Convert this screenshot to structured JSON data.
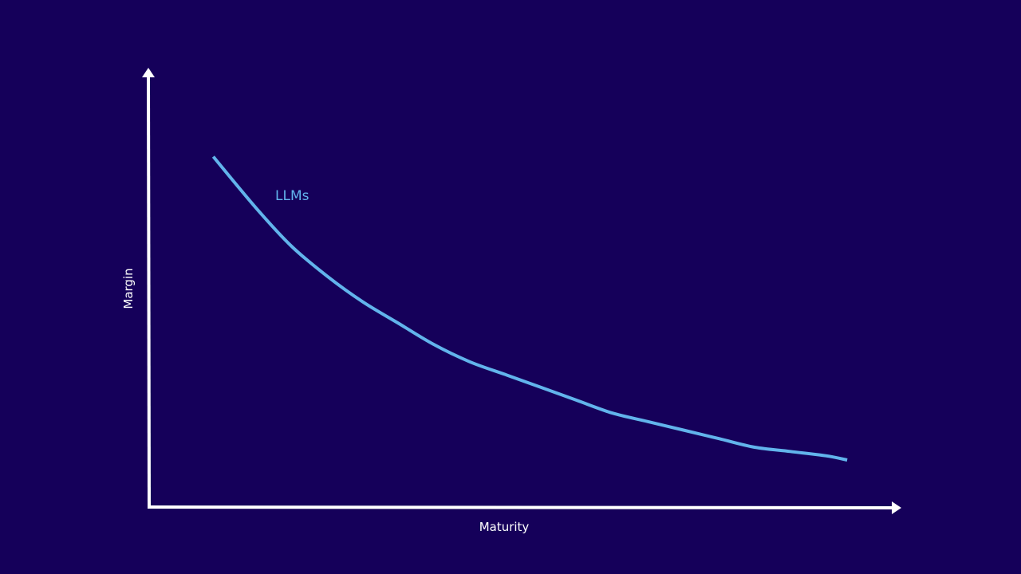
{
  "colors": {
    "background": "#15005a",
    "axis": "#ffffff",
    "series": "#62b4ec"
  },
  "chart_data": {
    "type": "line",
    "title": "",
    "xlabel": "Maturity",
    "ylabel": "Margin",
    "xlim": [
      0,
      1
    ],
    "ylim": [
      0,
      1
    ],
    "grid": false,
    "axis_style": "arrows",
    "ticks": false,
    "series": [
      {
        "name": "LLMs",
        "label_placement": "inline-near-start",
        "x": [
          0.09,
          0.15,
          0.2,
          0.25,
          0.3,
          0.35,
          0.4,
          0.45,
          0.5,
          0.55,
          0.6,
          0.65,
          0.7,
          0.75,
          0.8,
          0.85,
          0.9,
          0.95,
          0.98
        ],
        "y": [
          0.82,
          0.7,
          0.61,
          0.54,
          0.48,
          0.43,
          0.38,
          0.34,
          0.31,
          0.28,
          0.25,
          0.22,
          0.2,
          0.18,
          0.16,
          0.14,
          0.13,
          0.12,
          0.11
        ]
      }
    ]
  }
}
